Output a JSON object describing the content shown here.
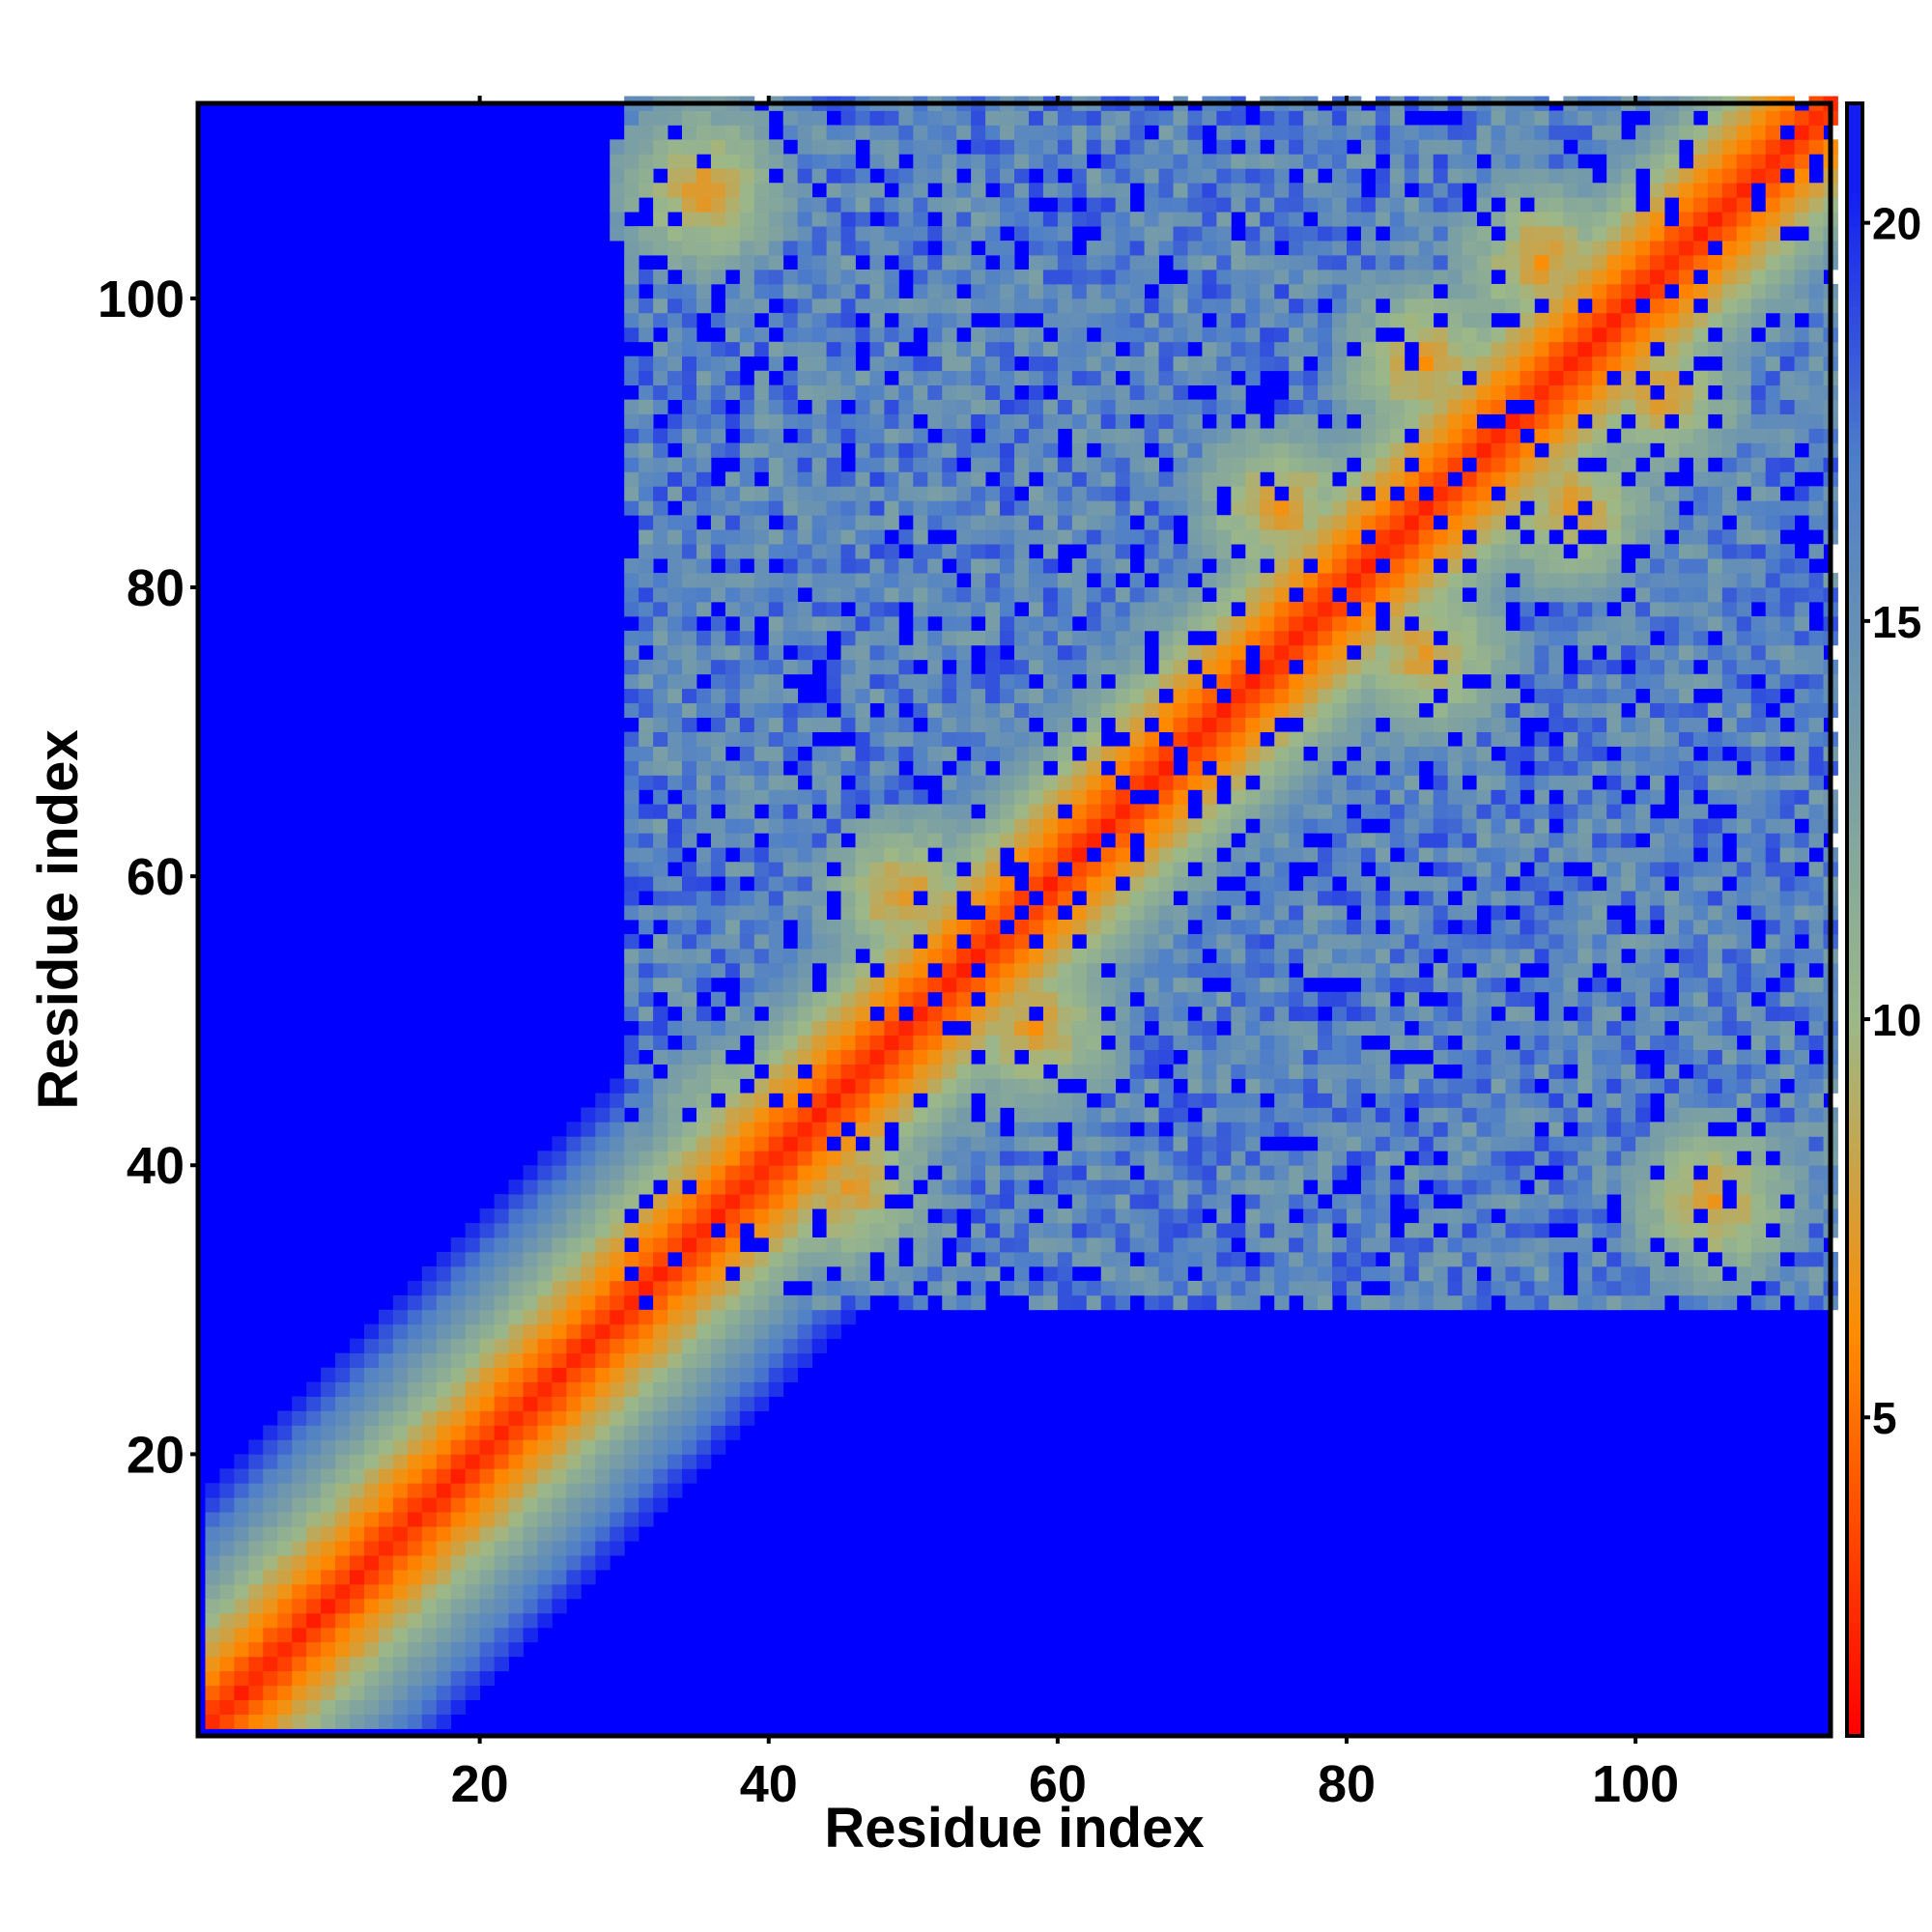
{
  "chart_data": {
    "type": "heatmap",
    "title": "",
    "xlabel": "Residue index",
    "ylabel": "Residue index",
    "x_range": [
      1,
      113
    ],
    "y_range": [
      1,
      113
    ],
    "x_ticks": [
      20,
      40,
      60,
      80,
      100
    ],
    "y_ticks": [
      20,
      40,
      60,
      80,
      100
    ],
    "colorbar": {
      "ticks": [
        5,
        10,
        15,
        20
      ],
      "range": [
        1,
        21.5
      ],
      "colors": [
        "#ff0000",
        "#ff8c00",
        "#9cb889",
        "#4f7fc8",
        "#0000ff"
      ]
    },
    "background_value": 21,
    "grid": false,
    "legend": "colorbar-right",
    "diagonal_band": {
      "start": 1,
      "end": 113,
      "description": "distance values near 1-4 along the main diagonal"
    },
    "contact_blobs": [
      {
        "x": 35,
        "y": 107,
        "value": 6
      },
      {
        "x": 38,
        "y": 42,
        "value": 6
      },
      {
        "x": 45,
        "y": 38,
        "value": 6
      },
      {
        "x": 49,
        "y": 58,
        "value": 6
      },
      {
        "x": 58,
        "y": 49,
        "value": 6
      },
      {
        "x": 75,
        "y": 85,
        "value": 6
      },
      {
        "x": 85,
        "y": 75,
        "value": 6
      },
      {
        "x": 85,
        "y": 95,
        "value": 6
      },
      {
        "x": 95,
        "y": 85,
        "value": 6
      },
      {
        "x": 93,
        "y": 102,
        "value": 6
      },
      {
        "x": 101,
        "y": 93,
        "value": 6
      },
      {
        "x": 105,
        "y": 37,
        "value": 6
      },
      {
        "x": 12,
        "y": 12,
        "value": 7
      }
    ]
  }
}
